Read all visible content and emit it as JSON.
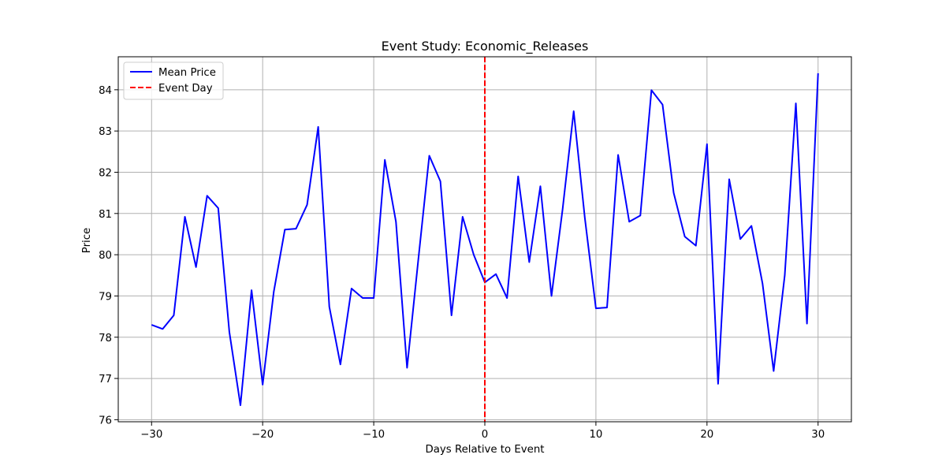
{
  "chart_data": {
    "type": "line",
    "title": "Event Study: Economic_Releases",
    "xlabel": "Days Relative to Event",
    "ylabel": "Price",
    "xlim": [
      -33,
      33
    ],
    "ylim": [
      75.95,
      84.8
    ],
    "xticks": [
      -30,
      -20,
      -10,
      0,
      10,
      20,
      30
    ],
    "xtick_labels": [
      "−30",
      "−20",
      "−10",
      "0",
      "10",
      "20",
      "30"
    ],
    "yticks": [
      76,
      77,
      78,
      79,
      80,
      81,
      82,
      83,
      84
    ],
    "ytick_labels": [
      "76",
      "77",
      "78",
      "79",
      "80",
      "81",
      "82",
      "83",
      "84"
    ],
    "grid": true,
    "legend_position": "upper-left",
    "series": [
      {
        "name": "Mean Price",
        "color": "#0000ff",
        "style": "solid",
        "x": [
          -30,
          -29,
          -28,
          -27,
          -26,
          -25,
          -24,
          -23,
          -22,
          -21,
          -20,
          -19,
          -18,
          -17,
          -16,
          -15,
          -14,
          -13,
          -12,
          -11,
          -10,
          -9,
          -8,
          -7,
          -6,
          -5,
          -4,
          -3,
          -2,
          -1,
          0,
          1,
          2,
          3,
          4,
          5,
          6,
          7,
          8,
          9,
          10,
          11,
          12,
          13,
          14,
          15,
          16,
          17,
          18,
          19,
          20,
          21,
          22,
          23,
          24,
          25,
          26,
          27,
          28,
          29,
          30
        ],
        "y": [
          78.3,
          78.2,
          78.53,
          80.92,
          79.7,
          81.43,
          81.13,
          78.13,
          76.35,
          79.14,
          76.85,
          79.1,
          80.61,
          80.63,
          81.21,
          83.1,
          78.74,
          77.34,
          79.18,
          78.95,
          78.95,
          82.3,
          80.8,
          77.26,
          79.85,
          82.4,
          81.78,
          78.53,
          80.92,
          80.0,
          79.33,
          79.53,
          78.95,
          81.9,
          79.82,
          81.66,
          79.0,
          81.1,
          83.48,
          80.9,
          78.7,
          78.72,
          82.42,
          80.8,
          80.95,
          83.99,
          83.64,
          81.5,
          80.44,
          80.22,
          82.68,
          76.87,
          81.83,
          80.38,
          80.7,
          79.3,
          77.18,
          79.5,
          83.67,
          78.33,
          84.4
        ]
      }
    ],
    "events": [
      {
        "name": "Event Day",
        "x": 0,
        "color": "#ff0000",
        "style": "dashed"
      }
    ]
  }
}
